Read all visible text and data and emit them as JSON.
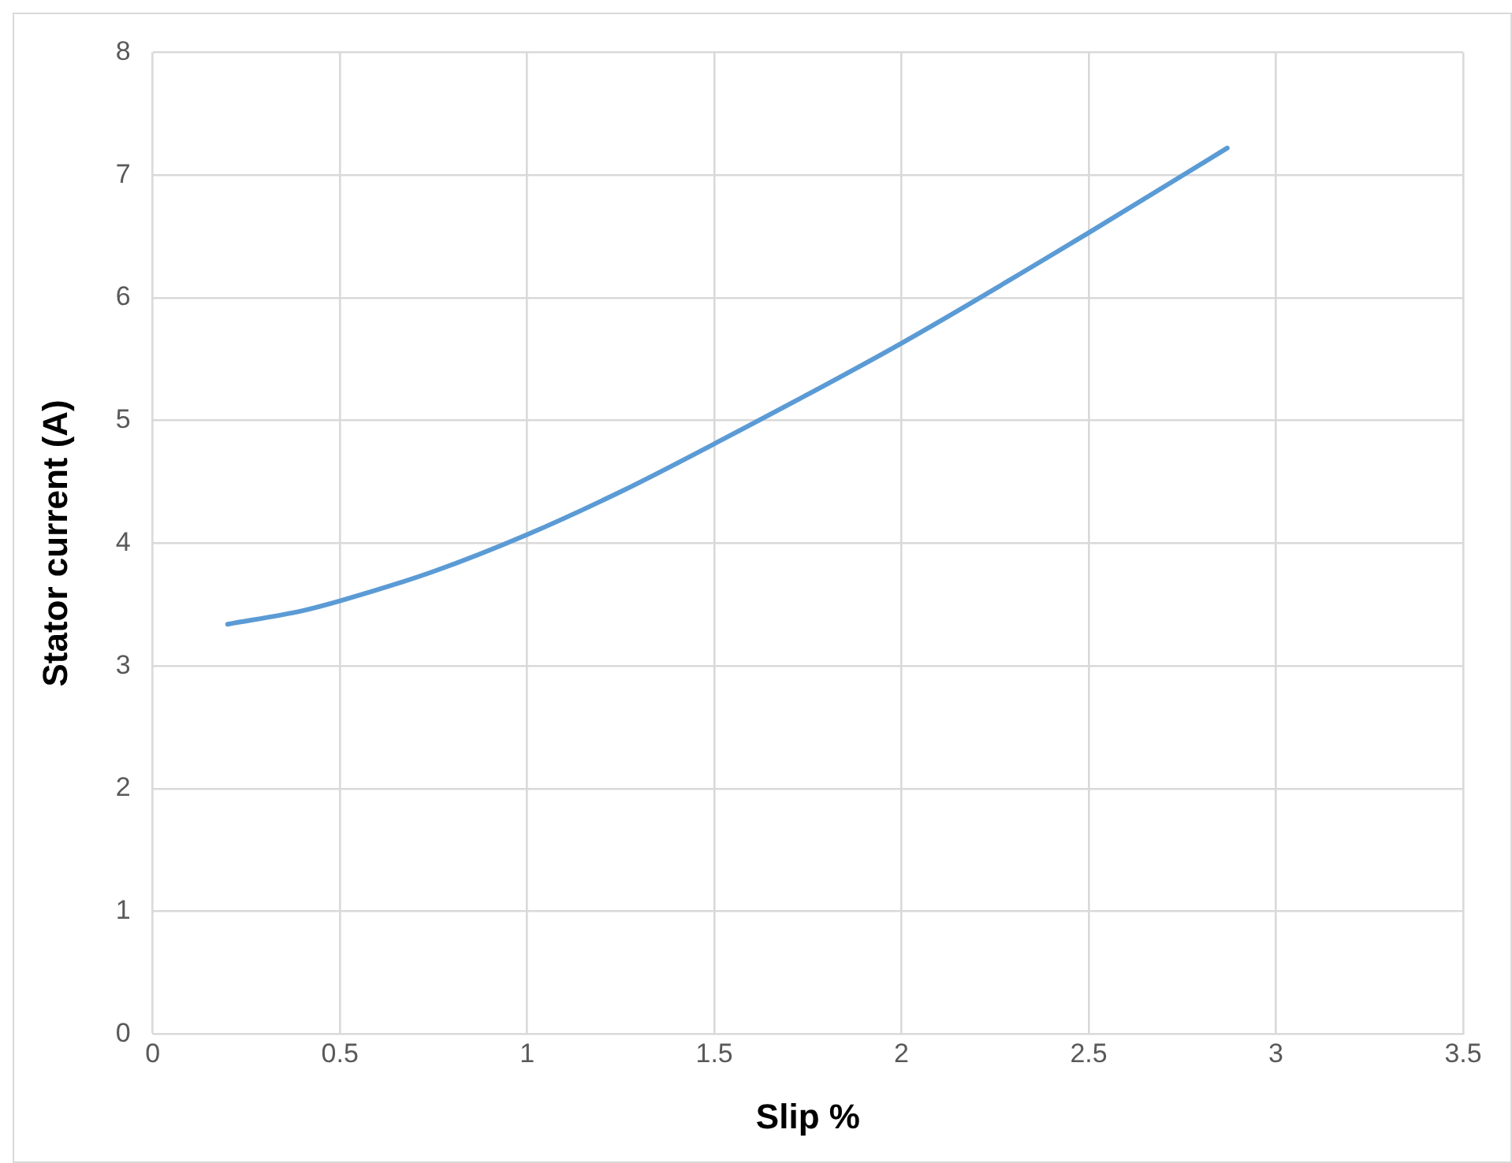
{
  "chart_data": {
    "type": "line",
    "xlabel": "Slip %",
    "ylabel": "Stator current (A)",
    "x": [
      0.2,
      0.4,
      0.5,
      0.75,
      1.0,
      1.25,
      1.5,
      2.0,
      2.5,
      2.87
    ],
    "series": [
      {
        "color": "#5b9bd5",
        "values": [
          3.34,
          3.45,
          3.53,
          3.77,
          4.07,
          4.42,
          4.81,
          5.63,
          6.53,
          7.22
        ]
      }
    ],
    "xlim": [
      0,
      3.5
    ],
    "xticks": [
      0,
      0.5,
      1,
      1.5,
      2,
      2.5,
      3,
      3.5
    ],
    "ylim": [
      0,
      8
    ],
    "yticks": [
      0,
      1,
      2,
      3,
      4,
      5,
      6,
      7,
      8
    ],
    "grid": true,
    "legend": false,
    "marker": "none",
    "line_style": "solid"
  }
}
